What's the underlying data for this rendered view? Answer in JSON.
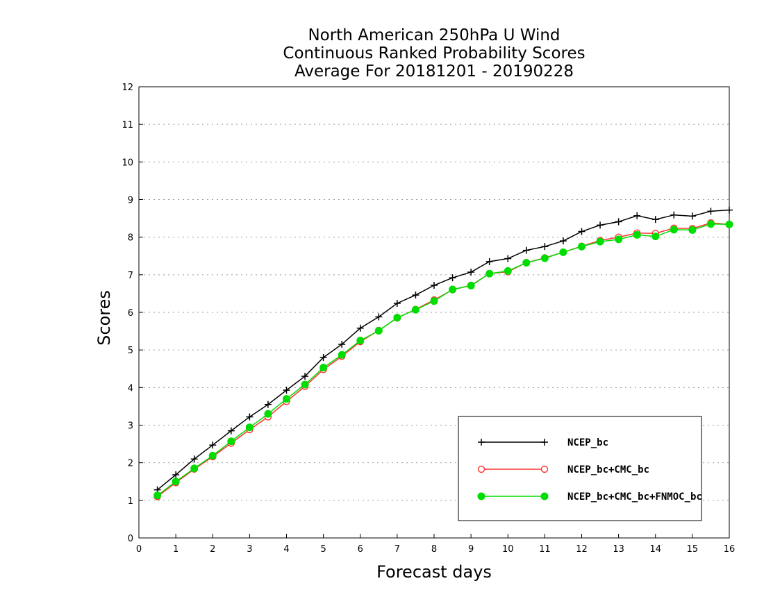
{
  "chart_data": {
    "type": "line",
    "title": [
      "North American 250hPa U Wind",
      "Continuous Ranked Probability Scores",
      "Average For 20181201 - 20190228"
    ],
    "xlabel": "Forecast days",
    "ylabel": "Scores",
    "xlim": [
      0,
      16
    ],
    "ylim": [
      0,
      12
    ],
    "xticks": [
      "0",
      "1",
      "2",
      "3",
      "4",
      "5",
      "6",
      "7",
      "8",
      "9",
      "10",
      "11",
      "12",
      "13",
      "14",
      "15",
      "16"
    ],
    "yticks": [
      "0",
      "1",
      "2",
      "3",
      "4",
      "5",
      "6",
      "7",
      "8",
      "9",
      "10",
      "11",
      "12"
    ],
    "grid": true,
    "legend_position": "bottom-right",
    "x": [
      0.5,
      1,
      1.5,
      2,
      2.5,
      3,
      3.5,
      4,
      4.5,
      5,
      5.5,
      6,
      6.5,
      7,
      7.5,
      8,
      8.5,
      9,
      9.5,
      10,
      10.5,
      11,
      11.5,
      12,
      12.5,
      13,
      13.5,
      14,
      14.5,
      15,
      15.5,
      16
    ],
    "series": [
      {
        "name": "NCEP_bc",
        "color": "#000000",
        "marker": "plus",
        "values": [
          1.28,
          1.68,
          2.1,
          2.47,
          2.85,
          3.22,
          3.55,
          3.93,
          4.3,
          4.8,
          5.15,
          5.58,
          5.88,
          6.24,
          6.46,
          6.72,
          6.92,
          7.07,
          7.35,
          7.43,
          7.65,
          7.75,
          7.9,
          8.15,
          8.32,
          8.41,
          8.57,
          8.47,
          8.59,
          8.56,
          8.69,
          8.72
        ]
      },
      {
        "name": "NCEP_bc+CMC_bc",
        "color": "#ff3030",
        "marker": "open-circle",
        "values": [
          1.1,
          1.47,
          1.83,
          2.16,
          2.52,
          2.88,
          3.22,
          3.63,
          4.03,
          4.48,
          4.83,
          5.22,
          5.52,
          5.85,
          6.08,
          6.33,
          6.6,
          6.72,
          7.03,
          7.08,
          7.32,
          7.45,
          7.6,
          7.76,
          7.91,
          8.0,
          8.11,
          8.1,
          8.24,
          8.23,
          8.38,
          8.34
        ]
      },
      {
        "name": "NCEP_bc+CMC_bc+FNMOC_bc",
        "color": "#00dd00",
        "marker": "filled-circle",
        "values": [
          1.13,
          1.5,
          1.85,
          2.19,
          2.57,
          2.94,
          3.3,
          3.7,
          4.08,
          4.53,
          4.87,
          5.25,
          5.51,
          5.86,
          6.07,
          6.3,
          6.61,
          6.71,
          7.03,
          7.1,
          7.32,
          7.44,
          7.6,
          7.75,
          7.88,
          7.94,
          8.06,
          8.02,
          8.2,
          8.19,
          8.35,
          8.34
        ]
      }
    ]
  }
}
